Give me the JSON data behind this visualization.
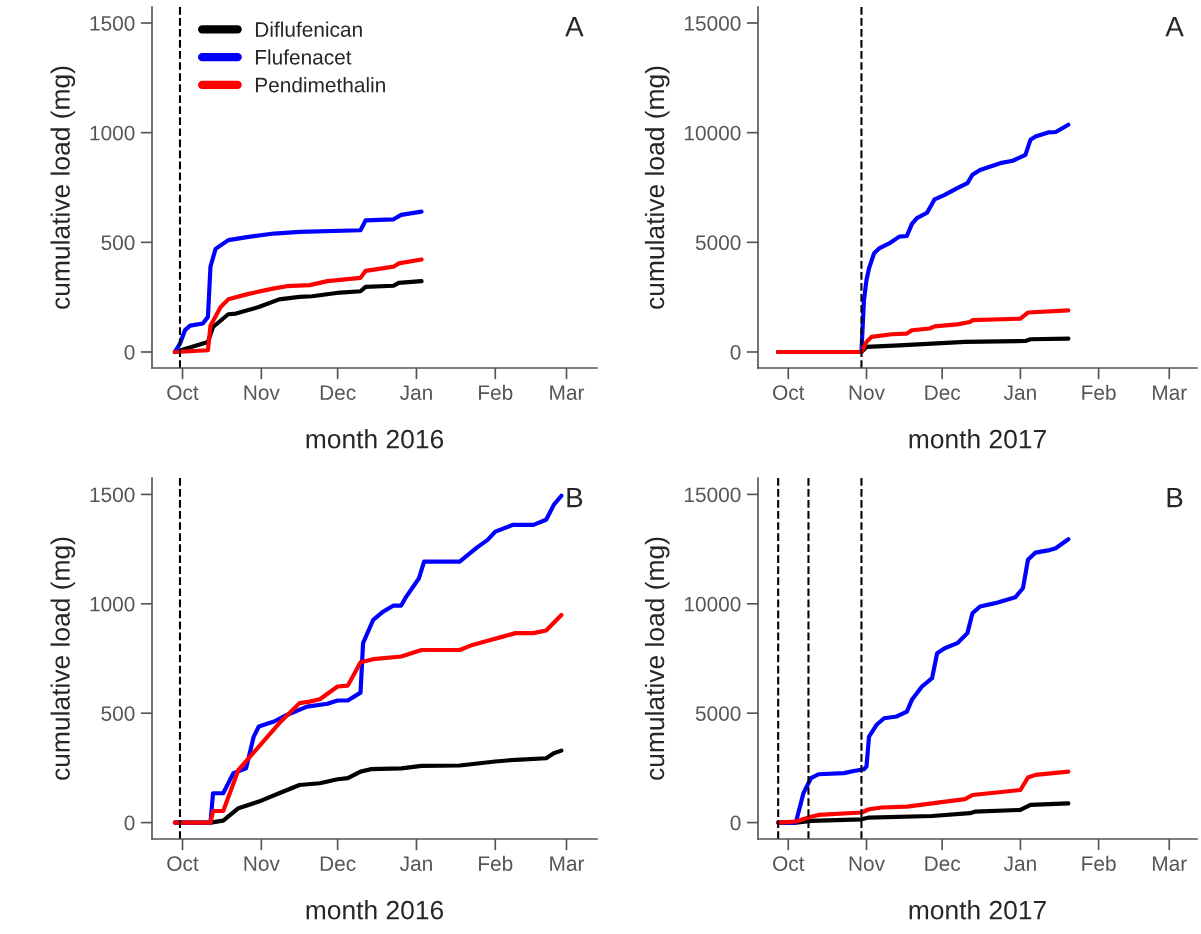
{
  "chart_data": [
    {
      "type": "line",
      "ylabel": "cumulative load (mg)",
      "xlabel": "month 2016",
      "annotations": [
        "A"
      ],
      "legend": "top left",
      "xlim": [
        "2016-09-19",
        "2017-03-13"
      ],
      "ylim": [
        -73,
        1573
      ],
      "yticks": [
        0,
        500,
        1000,
        1500
      ],
      "xticks": [
        {
          "value": "2016-10-01",
          "label": "Oct"
        },
        {
          "value": "2016-11-01",
          "label": "Nov"
        },
        {
          "value": "2016-12-01",
          "label": "Dec"
        },
        {
          "value": "2017-01-01",
          "label": "Jan"
        },
        {
          "value": "2017-02-01",
          "label": "Feb"
        },
        {
          "value": "2017-03-01",
          "label": "Mar"
        }
      ],
      "ref_lines": [
        {
          "axis": "x",
          "value": "2016-09-30",
          "color": "#000000",
          "line_style": "dashed"
        }
      ],
      "series": [
        {
          "name": "Diflufenican",
          "color": "#000000",
          "x": [
            "2016-09-28",
            "2016-10-11",
            "2016-10-13",
            "2016-10-19",
            "2016-10-22",
            "2016-10-31",
            "2016-11-08",
            "2016-11-16",
            "2016-11-21",
            "2016-12-02",
            "2016-12-10",
            "2016-12-12",
            "2016-12-23",
            "2016-12-25",
            "2017-01-03"
          ],
          "values": [
            0,
            46,
            114,
            172,
            175,
            205,
            240,
            251,
            254,
            271,
            277,
            297,
            302,
            315,
            323
          ]
        },
        {
          "name": "Flufenacet",
          "color": "#0000ff",
          "x": [
            "2016-09-28",
            "2016-09-30",
            "2016-10-02",
            "2016-10-04",
            "2016-10-09",
            "2016-10-11",
            "2016-10-12",
            "2016-10-14",
            "2016-10-19",
            "2016-10-27",
            "2016-11-06",
            "2016-11-16",
            "2016-12-10",
            "2016-12-12",
            "2016-12-23",
            "2016-12-26",
            "2017-01-03"
          ],
          "values": [
            0,
            38,
            100,
            120,
            130,
            160,
            390,
            470,
            510,
            525,
            540,
            548,
            555,
            600,
            605,
            625,
            640
          ]
        },
        {
          "name": "Pendimethalin",
          "color": "#ff0000",
          "x": [
            "2016-09-28",
            "2016-10-11",
            "2016-10-12",
            "2016-10-16",
            "2016-10-19",
            "2016-10-27",
            "2016-11-06",
            "2016-11-11",
            "2016-11-20",
            "2016-11-27",
            "2016-12-10",
            "2016-12-12",
            "2016-12-23",
            "2016-12-25",
            "2017-01-03"
          ],
          "values": [
            0,
            8,
            120,
            205,
            240,
            265,
            290,
            300,
            305,
            323,
            338,
            370,
            389,
            404,
            422
          ]
        }
      ]
    },
    {
      "type": "line",
      "ylabel": "cumulative load (mg)",
      "xlabel": "month 2017",
      "annotations": [
        "A"
      ],
      "xlim": [
        "2017-09-19",
        "2018-03-12"
      ],
      "ylim": [
        -730,
        15730
      ],
      "yticks": [
        0,
        5000,
        10000,
        15000
      ],
      "xticks": [
        {
          "value": "2017-10-01",
          "label": "Oct"
        },
        {
          "value": "2017-11-01",
          "label": "Nov"
        },
        {
          "value": "2017-12-01",
          "label": "Dec"
        },
        {
          "value": "2018-01-01",
          "label": "Jan"
        },
        {
          "value": "2018-02-01",
          "label": "Feb"
        },
        {
          "value": "2018-03-01",
          "label": "Mar"
        }
      ],
      "ref_lines": [
        {
          "axis": "x",
          "value": "2017-10-30",
          "color": "#000000",
          "line_style": "dashed"
        }
      ],
      "series": [
        {
          "color": "#000000",
          "x": [
            "2017-09-27",
            "2017-10-30",
            "2017-11-01",
            "2017-11-14",
            "2017-12-10",
            "2018-01-03",
            "2018-01-05",
            "2018-01-20"
          ],
          "values": [
            0,
            0,
            230,
            300,
            460,
            500,
            580,
            610
          ]
        },
        {
          "color": "#0000ff",
          "x": [
            "2017-09-27",
            "2017-10-30",
            "2017-10-31",
            "2017-11-01",
            "2017-11-02",
            "2017-11-04",
            "2017-11-06",
            "2017-11-10",
            "2017-11-14",
            "2017-11-17",
            "2017-11-19",
            "2017-11-21",
            "2017-11-25",
            "2017-11-28",
            "2017-12-02",
            "2017-12-07",
            "2017-12-11",
            "2017-12-13",
            "2017-12-16",
            "2017-12-24",
            "2017-12-29",
            "2018-01-03",
            "2018-01-05",
            "2018-01-07",
            "2018-01-12",
            "2018-01-15",
            "2018-01-20"
          ],
          "values": [
            0,
            0,
            2360,
            3280,
            3810,
            4500,
            4720,
            4950,
            5260,
            5290,
            5840,
            6100,
            6350,
            6960,
            7160,
            7470,
            7700,
            8080,
            8300,
            8610,
            8720,
            8990,
            9680,
            9830,
            10010,
            10030,
            10360
          ]
        },
        {
          "color": "#ff0000",
          "x": [
            "2017-09-27",
            "2017-10-30",
            "2017-11-01",
            "2017-11-03",
            "2017-11-11",
            "2017-11-17",
            "2017-11-19",
            "2017-11-26",
            "2017-11-28",
            "2017-12-07",
            "2017-12-12",
            "2017-12-13",
            "2018-01-01",
            "2018-01-04",
            "2018-01-20"
          ],
          "values": [
            0,
            0,
            460,
            690,
            810,
            840,
            990,
            1070,
            1170,
            1260,
            1370,
            1450,
            1520,
            1800,
            1900
          ]
        }
      ]
    },
    {
      "type": "line",
      "ylabel": "cumulative load (mg)",
      "xlabel": "month 2016",
      "annotations": [
        "B"
      ],
      "xlim": [
        "2016-09-19",
        "2017-03-13"
      ],
      "ylim": [
        -75,
        1575
      ],
      "yticks": [
        0,
        500,
        1000,
        1500
      ],
      "xticks": [
        {
          "value": "2016-10-01",
          "label": "Oct"
        },
        {
          "value": "2016-11-01",
          "label": "Nov"
        },
        {
          "value": "2016-12-01",
          "label": "Dec"
        },
        {
          "value": "2017-01-01",
          "label": "Jan"
        },
        {
          "value": "2017-02-01",
          "label": "Feb"
        },
        {
          "value": "2017-03-01",
          "label": "Mar"
        }
      ],
      "ref_lines": [
        {
          "axis": "x",
          "value": "2016-09-30",
          "color": "#000000",
          "line_style": "dashed"
        }
      ],
      "series": [
        {
          "color": "#000000",
          "x": [
            "2016-09-28",
            "2016-10-12",
            "2016-10-17",
            "2016-10-23",
            "2016-10-31",
            "2016-11-08",
            "2016-11-16",
            "2016-11-24",
            "2016-12-01",
            "2016-12-05",
            "2016-12-10",
            "2016-12-14",
            "2016-12-26",
            "2017-01-03",
            "2017-01-18",
            "2017-02-01",
            "2017-02-09",
            "2017-02-21",
            "2017-02-24",
            "2017-02-27"
          ],
          "values": [
            0,
            0,
            9,
            66,
            96,
            134,
            172,
            180,
            198,
            203,
            233,
            244,
            248,
            259,
            261,
            279,
            287,
            294,
            317,
            329
          ]
        },
        {
          "color": "#0000ff",
          "x": [
            "2016-09-28",
            "2016-10-12",
            "2016-10-13",
            "2016-10-17",
            "2016-10-21",
            "2016-10-26",
            "2016-10-29",
            "2016-10-31",
            "2016-11-06",
            "2016-11-11",
            "2016-11-19",
            "2016-11-27",
            "2016-12-01",
            "2016-12-05",
            "2016-12-10",
            "2016-12-11",
            "2016-12-15",
            "2016-12-19",
            "2016-12-23",
            "2016-12-26",
            "2016-12-28",
            "2017-01-02",
            "2017-01-04",
            "2017-01-18",
            "2017-01-25",
            "2017-01-29",
            "2017-02-01",
            "2017-02-08",
            "2017-02-16",
            "2017-02-21",
            "2017-02-24",
            "2017-02-27"
          ],
          "values": [
            0,
            0,
            134,
            134,
            226,
            248,
            393,
            439,
            462,
            492,
            530,
            543,
            558,
            558,
            594,
            820,
            927,
            965,
            992,
            992,
            1033,
            1117,
            1193,
            1193,
            1259,
            1292,
            1330,
            1361,
            1361,
            1384,
            1452,
            1494
          ]
        },
        {
          "color": "#ff0000",
          "x": [
            "2016-09-28",
            "2016-10-12",
            "2016-10-13",
            "2016-10-17",
            "2016-10-23",
            "2016-10-31",
            "2016-11-08",
            "2016-11-16",
            "2016-11-20",
            "2016-11-24",
            "2016-12-01",
            "2016-12-05",
            "2016-12-10",
            "2016-12-15",
            "2016-12-26",
            "2017-01-03",
            "2017-01-18",
            "2017-01-23",
            "2017-01-29",
            "2017-02-04",
            "2017-02-09",
            "2017-02-16",
            "2017-02-21",
            "2017-02-27"
          ],
          "values": [
            0,
            0,
            53,
            53,
            241,
            347,
            454,
            546,
            553,
            564,
            622,
            626,
            733,
            747,
            759,
            789,
            789,
            812,
            831,
            850,
            866,
            866,
            878,
            949
          ]
        }
      ]
    },
    {
      "type": "line",
      "ylabel": "cumulative load (mg)",
      "xlabel": "month 2017",
      "annotations": [
        "B"
      ],
      "xlim": [
        "2017-09-19",
        "2018-03-12"
      ],
      "ylim": [
        -750,
        15750
      ],
      "yticks": [
        0,
        5000,
        10000,
        15000
      ],
      "xticks": [
        {
          "value": "2017-10-01",
          "label": "Oct"
        },
        {
          "value": "2017-11-01",
          "label": "Nov"
        },
        {
          "value": "2017-12-01",
          "label": "Dec"
        },
        {
          "value": "2018-01-01",
          "label": "Jan"
        },
        {
          "value": "2018-02-01",
          "label": "Feb"
        },
        {
          "value": "2018-03-01",
          "label": "Mar"
        }
      ],
      "ref_lines": [
        {
          "axis": "x",
          "value": "2017-09-27",
          "color": "#000000",
          "line_style": "dashed"
        },
        {
          "axis": "x",
          "value": "2017-10-09",
          "color": "#000000",
          "line_style": "dashed"
        },
        {
          "axis": "x",
          "value": "2017-10-30",
          "color": "#000000",
          "line_style": "dashed"
        }
      ],
      "series": [
        {
          "color": "#000000",
          "x": [
            "2017-09-27",
            "2017-10-04",
            "2017-10-10",
            "2017-10-30",
            "2017-11-02",
            "2017-11-27",
            "2017-12-12",
            "2017-12-14",
            "2018-01-01",
            "2018-01-05",
            "2018-01-20"
          ],
          "values": [
            0,
            0,
            80,
            150,
            230,
            300,
            430,
            500,
            580,
            810,
            880
          ]
        },
        {
          "color": "#0000ff",
          "x": [
            "2017-09-27",
            "2017-10-04",
            "2017-10-07",
            "2017-10-10",
            "2017-10-13",
            "2017-10-23",
            "2017-10-27",
            "2017-10-31",
            "2017-11-01",
            "2017-11-02",
            "2017-11-05",
            "2017-11-08",
            "2017-11-13",
            "2017-11-17",
            "2017-11-19",
            "2017-11-23",
            "2017-11-27",
            "2017-11-29",
            "2017-12-02",
            "2017-12-07",
            "2017-12-11",
            "2017-12-13",
            "2017-12-16",
            "2017-12-22",
            "2017-12-30",
            "2018-01-02",
            "2018-01-04",
            "2018-01-07",
            "2018-01-12",
            "2018-01-15",
            "2018-01-20"
          ],
          "values": [
            0,
            0,
            1340,
            2030,
            2210,
            2260,
            2360,
            2440,
            2560,
            3930,
            4470,
            4770,
            4850,
            5070,
            5610,
            6220,
            6600,
            7740,
            7970,
            8200,
            8660,
            9570,
            9880,
            10030,
            10300,
            10710,
            12010,
            12340,
            12440,
            12540,
            12950
          ]
        },
        {
          "color": "#ff0000",
          "x": [
            "2017-09-27",
            "2017-10-04",
            "2017-10-10",
            "2017-10-13",
            "2017-10-30",
            "2017-11-02",
            "2017-11-07",
            "2017-11-17",
            "2017-11-27",
            "2017-12-10",
            "2017-12-13",
            "2018-01-01",
            "2018-01-04",
            "2018-01-07",
            "2018-01-20"
          ],
          "values": [
            0,
            50,
            270,
            350,
            460,
            610,
            690,
            730,
            880,
            1070,
            1260,
            1490,
            2060,
            2180,
            2330
          ]
        }
      ]
    }
  ]
}
